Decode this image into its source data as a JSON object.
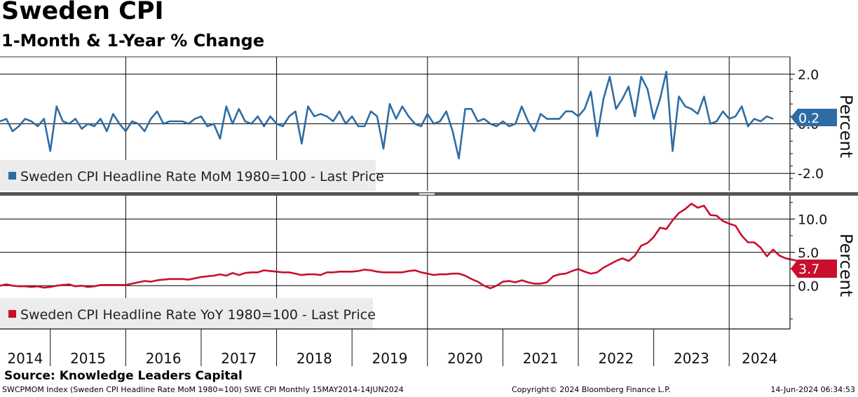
{
  "chart_data": [
    {
      "type": "line",
      "title": "Sweden CPI",
      "subtitle": "1-Month & 1-Year % Change",
      "ylabel": "Percent",
      "ylim": [
        -2.7,
        2.7
      ],
      "yticks": [
        -2.0,
        0.0,
        2.0
      ],
      "ytick_labels": [
        "-2.0",
        "0.0",
        "2.0"
      ],
      "legend": "bottom-left",
      "last_value_label": "0.2",
      "series": [
        {
          "name": "Sweden CPI Headline Rate MoM 1980=100 - Last Price",
          "color": "#2e6da4",
          "start": "2014-05",
          "values": [
            0.1,
            0.2,
            -0.3,
            -0.1,
            0.2,
            0.1,
            -0.1,
            0.2,
            -1.1,
            0.7,
            0.1,
            0.0,
            0.2,
            -0.2,
            0.0,
            -0.1,
            0.2,
            -0.3,
            0.4,
            0.0,
            -0.3,
            0.1,
            0.0,
            -0.3,
            0.2,
            0.5,
            0.0,
            0.1,
            0.1,
            0.1,
            0.0,
            0.2,
            0.3,
            -0.1,
            0.0,
            -0.6,
            0.7,
            0.0,
            0.6,
            0.1,
            0.0,
            0.3,
            -0.1,
            0.3,
            0.0,
            -0.1,
            0.3,
            0.5,
            -0.8,
            0.7,
            0.3,
            0.4,
            0.3,
            0.1,
            0.5,
            0.0,
            0.3,
            -0.1,
            -0.1,
            0.5,
            0.3,
            -1.0,
            0.8,
            0.2,
            0.7,
            0.3,
            0.0,
            -0.1,
            0.4,
            0.0,
            0.1,
            0.5,
            -0.3,
            -1.4,
            0.6,
            0.6,
            0.1,
            0.2,
            0.0,
            -0.1,
            0.1,
            -0.1,
            0.0,
            0.7,
            0.1,
            -0.3,
            0.4,
            0.2,
            0.2,
            0.2,
            0.5,
            0.5,
            0.3,
            0.6,
            1.3,
            -0.5,
            1.0,
            1.9,
            0.6,
            1.0,
            1.5,
            0.3,
            1.9,
            1.4,
            0.2,
            1.0,
            2.1,
            -1.1,
            1.1,
            0.7,
            0.6,
            0.4,
            1.1,
            0.0,
            0.1,
            0.5,
            0.2,
            0.3,
            0.7,
            -0.1,
            0.2,
            0.1,
            0.3,
            0.2
          ]
        }
      ]
    },
    {
      "type": "line",
      "ylabel": "Percent",
      "ylim": [
        -6.5,
        13.5
      ],
      "yticks": [
        0.0,
        5.0,
        10.0
      ],
      "ytick_labels": [
        "0.0",
        "5.0",
        "10.0"
      ],
      "legend": "bottom-left",
      "last_value_label": "3.7",
      "x_tick_labels": [
        "2014",
        "2015",
        "2016",
        "2017",
        "2018",
        "2019",
        "2020",
        "2021",
        "2022",
        "2023",
        "2024"
      ],
      "series": [
        {
          "name": "Sweden CPI Headline Rate YoY 1980=100 - Last Price",
          "color": "#c8102e",
          "start": "2014-05",
          "values": [
            0.0,
            0.2,
            0.0,
            -0.1,
            -0.1,
            -0.2,
            -0.1,
            -0.3,
            -0.2,
            0.0,
            0.1,
            0.2,
            -0.1,
            0.0,
            -0.2,
            -0.1,
            0.1,
            0.1,
            0.1,
            0.1,
            0.1,
            0.3,
            0.5,
            0.7,
            0.6,
            0.8,
            0.9,
            1.0,
            1.0,
            1.0,
            0.9,
            1.1,
            1.3,
            1.4,
            1.5,
            1.7,
            1.5,
            1.9,
            1.6,
            1.9,
            2.0,
            2.0,
            2.3,
            2.2,
            2.1,
            2.0,
            2.0,
            1.8,
            1.6,
            1.7,
            1.7,
            1.6,
            2.0,
            2.0,
            2.1,
            2.1,
            2.1,
            2.2,
            2.4,
            2.3,
            2.1,
            2.0,
            2.0,
            2.0,
            2.0,
            2.2,
            2.3,
            2.0,
            1.8,
            1.6,
            1.7,
            1.7,
            1.8,
            1.8,
            1.5,
            1.0,
            0.6,
            0.0,
            -0.4,
            0.0,
            0.6,
            0.7,
            0.5,
            0.8,
            0.5,
            0.3,
            0.3,
            0.5,
            1.4,
            1.7,
            1.8,
            2.2,
            2.5,
            2.1,
            1.8,
            2.0,
            2.7,
            3.2,
            3.7,
            4.1,
            3.7,
            4.5,
            6.0,
            6.4,
            7.3,
            8.7,
            8.5,
            9.8,
            10.9,
            11.5,
            12.3,
            11.7,
            12.0,
            10.6,
            10.5,
            9.7,
            9.3,
            9.0,
            7.5,
            6.5,
            6.5,
            5.7,
            4.4,
            5.4,
            4.5,
            4.1,
            3.9,
            3.7
          ]
        }
      ]
    }
  ],
  "source": "Source: Knowledge Leaders Capital",
  "footer": {
    "left": "SWCPMOM Index (Sweden CPI Headline Rate MoM 1980=100) SWE CPI  Monthly 15MAY2014-14JUN2024",
    "middle": "Copyright© 2024 Bloomberg Finance L.P.",
    "right": "14-Jun-2024 06:34:53"
  }
}
